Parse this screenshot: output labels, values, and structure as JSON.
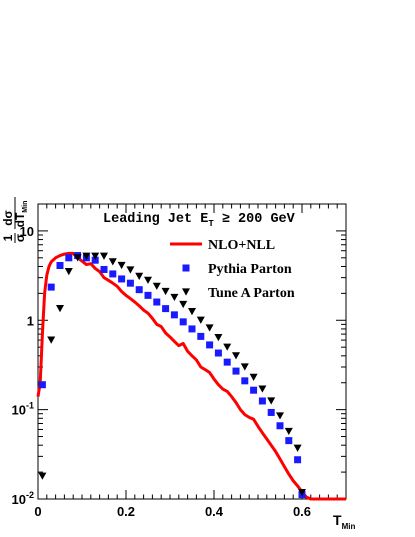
{
  "chart_data": {
    "type": "scatter",
    "title": {
      "main": "Leading Jet E",
      "sub": "T",
      "rest": " ≥ 200 GeV"
    },
    "xlabel": {
      "main": "T",
      "sub": "Min"
    },
    "ylabel": {
      "frac1_num": "1",
      "frac1_den": "σ",
      "frac2_num": "dσ",
      "frac2_den": "dT",
      "frac2_den_sub": "Min"
    },
    "xlim": [
      0,
      0.7
    ],
    "ylim": [
      0.01,
      20
    ],
    "yscale": "log",
    "x_ticks": [
      {
        "value": 0,
        "label": "0"
      },
      {
        "value": 0.2,
        "label": "0.2"
      },
      {
        "value": 0.4,
        "label": "0.4"
      },
      {
        "value": 0.6,
        "label": "0.6"
      }
    ],
    "y_ticks": [
      {
        "value": 0.01,
        "base": "10",
        "exp": "-2"
      },
      {
        "value": 0.1,
        "base": "10",
        "exp": "-1"
      },
      {
        "value": 1,
        "base": "1",
        "exp": ""
      },
      {
        "value": 10,
        "base": "10",
        "exp": ""
      }
    ],
    "legend_position": "top-right",
    "series": [
      {
        "name": "NLO+NLL",
        "kind": "line",
        "color": "#ff0000",
        "x": [
          0.0,
          0.005,
          0.01,
          0.015,
          0.02,
          0.025,
          0.03,
          0.04,
          0.05,
          0.06,
          0.07,
          0.08,
          0.09,
          0.1,
          0.11,
          0.12,
          0.13,
          0.14,
          0.15,
          0.16,
          0.17,
          0.18,
          0.19,
          0.2,
          0.21,
          0.22,
          0.23,
          0.24,
          0.25,
          0.26,
          0.27,
          0.28,
          0.29,
          0.3,
          0.31,
          0.32,
          0.33,
          0.34,
          0.35,
          0.36,
          0.37,
          0.38,
          0.39,
          0.4,
          0.41,
          0.42,
          0.43,
          0.44,
          0.45,
          0.46,
          0.47,
          0.48,
          0.49,
          0.5,
          0.51,
          0.52,
          0.53,
          0.54,
          0.55,
          0.56,
          0.57,
          0.58,
          0.59,
          0.6,
          0.61,
          0.62,
          0.63,
          0.7
        ],
        "y": [
          0.14,
          0.2,
          0.7,
          2.0,
          3.2,
          4.0,
          4.5,
          5.0,
          5.3,
          5.5,
          5.6,
          5.6,
          5.0,
          4.6,
          4.2,
          4.3,
          3.8,
          3.5,
          3.0,
          2.8,
          2.6,
          2.4,
          2.1,
          1.9,
          1.75,
          1.6,
          1.45,
          1.3,
          1.2,
          1.05,
          0.9,
          0.85,
          0.72,
          0.65,
          0.58,
          0.52,
          0.55,
          0.45,
          0.4,
          0.36,
          0.3,
          0.28,
          0.26,
          0.22,
          0.19,
          0.17,
          0.16,
          0.14,
          0.12,
          0.1,
          0.088,
          0.082,
          0.078,
          0.065,
          0.055,
          0.047,
          0.04,
          0.034,
          0.028,
          0.023,
          0.019,
          0.016,
          0.014,
          0.012,
          0.0105,
          0.01,
          0.01,
          0.01
        ]
      },
      {
        "name": "Pythia Parton",
        "kind": "square",
        "color": "#1a1aff",
        "x": [
          0.01,
          0.03,
          0.05,
          0.07,
          0.09,
          0.11,
          0.13,
          0.15,
          0.17,
          0.19,
          0.21,
          0.23,
          0.25,
          0.27,
          0.29,
          0.31,
          0.33,
          0.35,
          0.37,
          0.39,
          0.41,
          0.43,
          0.45,
          0.47,
          0.49,
          0.51,
          0.53,
          0.55,
          0.57,
          0.59
        ],
        "y": [
          0.19,
          2.35,
          4.1,
          5.0,
          5.3,
          5.0,
          4.7,
          3.7,
          3.3,
          2.9,
          2.6,
          2.2,
          1.9,
          1.6,
          1.35,
          1.15,
          0.96,
          0.8,
          0.66,
          0.53,
          0.43,
          0.34,
          0.27,
          0.21,
          0.165,
          0.125,
          0.093,
          0.066,
          0.045,
          0.0275
        ]
      },
      {
        "name": "Tune A Parton",
        "kind": "triangle",
        "color": "#000000",
        "x": [
          0.01,
          0.03,
          0.05,
          0.07,
          0.09,
          0.11,
          0.13,
          0.15,
          0.17,
          0.19,
          0.21,
          0.23,
          0.25,
          0.27,
          0.29,
          0.31,
          0.33,
          0.35,
          0.37,
          0.39,
          0.41,
          0.43,
          0.45,
          0.47,
          0.49,
          0.51,
          0.53,
          0.55,
          0.57,
          0.59
        ],
        "y": [
          0.018,
          0.6,
          1.35,
          3.5,
          5.0,
          5.2,
          5.2,
          5.2,
          4.5,
          4.1,
          3.65,
          3.1,
          2.8,
          2.4,
          2.1,
          1.8,
          1.5,
          1.25,
          1.0,
          0.82,
          0.64,
          0.5,
          0.4,
          0.3,
          0.23,
          0.17,
          0.125,
          0.085,
          0.057,
          0.037
        ]
      }
    ],
    "extra_points": [
      {
        "series": "Pythia Parton",
        "x": 0.6,
        "y": 0.0112
      },
      {
        "series": "Tune A Parton",
        "x": 0.6,
        "y": 0.0118
      }
    ],
    "frame": {
      "right_axis": true,
      "top_axis": true
    }
  }
}
